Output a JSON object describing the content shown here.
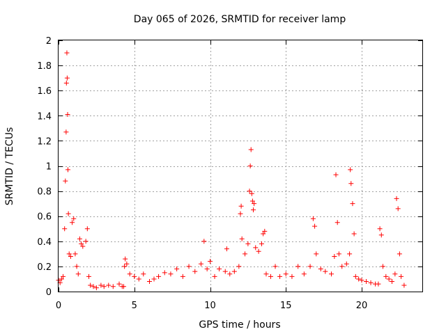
{
  "chart_data": {
    "type": "scatter",
    "title": "Day 065 of 2026, SRMTID for receiver lamp",
    "xlabel": "GPS time / hours",
    "ylabel": "SRMTID / TECUs",
    "xlim": [
      0,
      24
    ],
    "ylim": [
      0,
      2
    ],
    "xticks": [
      0,
      5,
      10,
      15,
      20
    ],
    "yticks": [
      0,
      0.2,
      0.4,
      0.6,
      0.8,
      1,
      1.2,
      1.4,
      1.6,
      1.8,
      2
    ],
    "xtick_labels": [
      "0",
      "5",
      "10",
      "15",
      "20"
    ],
    "ytick_labels": [
      "0",
      "0.2",
      "0.4",
      "0.6",
      "0.8",
      "1",
      "1.2",
      "1.4",
      "1.6",
      "1.8",
      "2"
    ],
    "grid": true,
    "marker": "+",
    "color": "#ff0000",
    "series": [
      {
        "name": "lamp",
        "points": [
          [
            0.0,
            0.09
          ],
          [
            0.1,
            0.07
          ],
          [
            0.2,
            0.1
          ],
          [
            0.3,
            0.12
          ],
          [
            0.4,
            0.5
          ],
          [
            0.45,
            0.88
          ],
          [
            0.5,
            1.27
          ],
          [
            0.52,
            1.66
          ],
          [
            0.55,
            1.9
          ],
          [
            0.57,
            1.7
          ],
          [
            0.6,
            1.41
          ],
          [
            0.62,
            0.97
          ],
          [
            0.65,
            0.62
          ],
          [
            0.7,
            0.3
          ],
          [
            0.8,
            0.28
          ],
          [
            0.9,
            0.55
          ],
          [
            1.0,
            0.58
          ],
          [
            1.1,
            0.3
          ],
          [
            1.2,
            0.2
          ],
          [
            1.3,
            0.14
          ],
          [
            1.4,
            0.42
          ],
          [
            1.5,
            0.38
          ],
          [
            1.6,
            0.36
          ],
          [
            1.8,
            0.4
          ],
          [
            1.9,
            0.5
          ],
          [
            2.0,
            0.12
          ],
          [
            2.1,
            0.05
          ],
          [
            2.3,
            0.04
          ],
          [
            2.5,
            0.03
          ],
          [
            2.8,
            0.05
          ],
          [
            3.0,
            0.04
          ],
          [
            3.3,
            0.05
          ],
          [
            3.6,
            0.04
          ],
          [
            4.0,
            0.06
          ],
          [
            4.2,
            0.04
          ],
          [
            4.3,
            0.04
          ],
          [
            4.35,
            0.2
          ],
          [
            4.4,
            0.26
          ],
          [
            4.5,
            0.22
          ],
          [
            4.7,
            0.14
          ],
          [
            5.0,
            0.12
          ],
          [
            5.3,
            0.1
          ],
          [
            5.6,
            0.14
          ],
          [
            6.0,
            0.08
          ],
          [
            6.3,
            0.1
          ],
          [
            6.6,
            0.12
          ],
          [
            7.0,
            0.15
          ],
          [
            7.4,
            0.14
          ],
          [
            7.8,
            0.18
          ],
          [
            8.2,
            0.12
          ],
          [
            8.6,
            0.2
          ],
          [
            9.0,
            0.16
          ],
          [
            9.4,
            0.22
          ],
          [
            9.6,
            0.4
          ],
          [
            9.8,
            0.18
          ],
          [
            10.0,
            0.24
          ],
          [
            10.3,
            0.12
          ],
          [
            10.6,
            0.18
          ],
          [
            11.0,
            0.16
          ],
          [
            11.1,
            0.34
          ],
          [
            11.3,
            0.14
          ],
          [
            11.6,
            0.16
          ],
          [
            11.9,
            0.2
          ],
          [
            12.0,
            0.62
          ],
          [
            12.05,
            0.68
          ],
          [
            12.1,
            0.42
          ],
          [
            12.3,
            0.3
          ],
          [
            12.5,
            0.38
          ],
          [
            12.6,
            0.8
          ],
          [
            12.65,
            1.0
          ],
          [
            12.7,
            1.13
          ],
          [
            12.75,
            0.78
          ],
          [
            12.8,
            0.72
          ],
          [
            12.85,
            0.65
          ],
          [
            12.9,
            0.7
          ],
          [
            13.0,
            0.35
          ],
          [
            13.2,
            0.32
          ],
          [
            13.4,
            0.38
          ],
          [
            13.5,
            0.46
          ],
          [
            13.6,
            0.48
          ],
          [
            13.7,
            0.14
          ],
          [
            14.0,
            0.12
          ],
          [
            14.3,
            0.2
          ],
          [
            14.6,
            0.12
          ],
          [
            15.0,
            0.14
          ],
          [
            15.4,
            0.12
          ],
          [
            15.8,
            0.2
          ],
          [
            16.2,
            0.14
          ],
          [
            16.6,
            0.2
          ],
          [
            16.8,
            0.58
          ],
          [
            16.9,
            0.52
          ],
          [
            17.0,
            0.3
          ],
          [
            17.3,
            0.18
          ],
          [
            17.6,
            0.16
          ],
          [
            18.0,
            0.14
          ],
          [
            18.2,
            0.28
          ],
          [
            18.3,
            0.93
          ],
          [
            18.4,
            0.55
          ],
          [
            18.5,
            0.3
          ],
          [
            18.7,
            0.2
          ],
          [
            19.0,
            0.22
          ],
          [
            19.2,
            0.3
          ],
          [
            19.25,
            0.97
          ],
          [
            19.3,
            0.86
          ],
          [
            19.4,
            0.7
          ],
          [
            19.5,
            0.46
          ],
          [
            19.6,
            0.12
          ],
          [
            19.8,
            0.1
          ],
          [
            20.0,
            0.09
          ],
          [
            20.3,
            0.08
          ],
          [
            20.6,
            0.07
          ],
          [
            20.9,
            0.06
          ],
          [
            21.1,
            0.06
          ],
          [
            21.2,
            0.5
          ],
          [
            21.3,
            0.45
          ],
          [
            21.4,
            0.2
          ],
          [
            21.6,
            0.12
          ],
          [
            21.8,
            0.1
          ],
          [
            22.0,
            0.08
          ],
          [
            22.2,
            0.14
          ],
          [
            22.3,
            0.74
          ],
          [
            22.4,
            0.66
          ],
          [
            22.5,
            0.3
          ],
          [
            22.6,
            0.12
          ],
          [
            22.8,
            0.05
          ]
        ]
      }
    ]
  }
}
